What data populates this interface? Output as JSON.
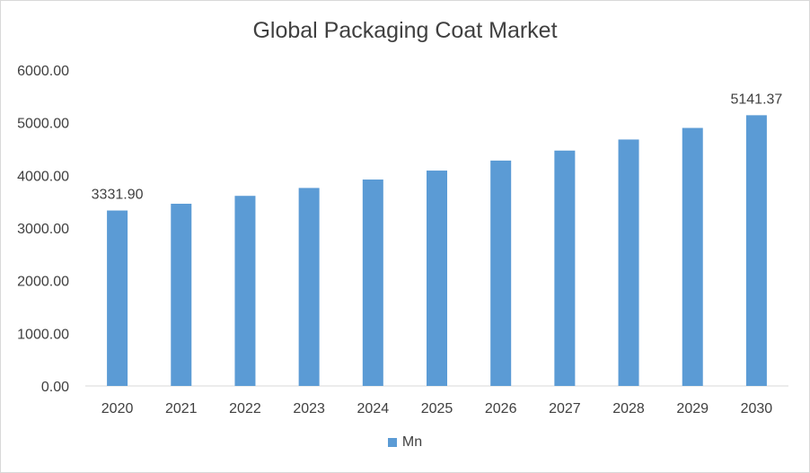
{
  "chart_data": {
    "type": "bar",
    "title": "Global Packaging Coat Market",
    "xlabel": "",
    "ylabel": "",
    "categories": [
      "2020",
      "2021",
      "2022",
      "2023",
      "2024",
      "2025",
      "2026",
      "2027",
      "2028",
      "2029",
      "2030"
    ],
    "series": [
      {
        "name": "Mn",
        "color": "#5b9bd5",
        "values": [
          3331.9,
          3460,
          3610,
          3760,
          3920,
          4090,
          4280,
          4470,
          4680,
          4900,
          5141.37
        ]
      }
    ],
    "data_labels": [
      {
        "category": "2020",
        "text": "3331.90"
      },
      {
        "category": "2030",
        "text": "5141.37"
      }
    ],
    "ylim": [
      0,
      6000
    ],
    "yticks": [
      "0.00",
      "1000.00",
      "2000.00",
      "3000.00",
      "4000.00",
      "5000.00",
      "6000.00"
    ],
    "grid": false,
    "legend_position": "bottom"
  }
}
